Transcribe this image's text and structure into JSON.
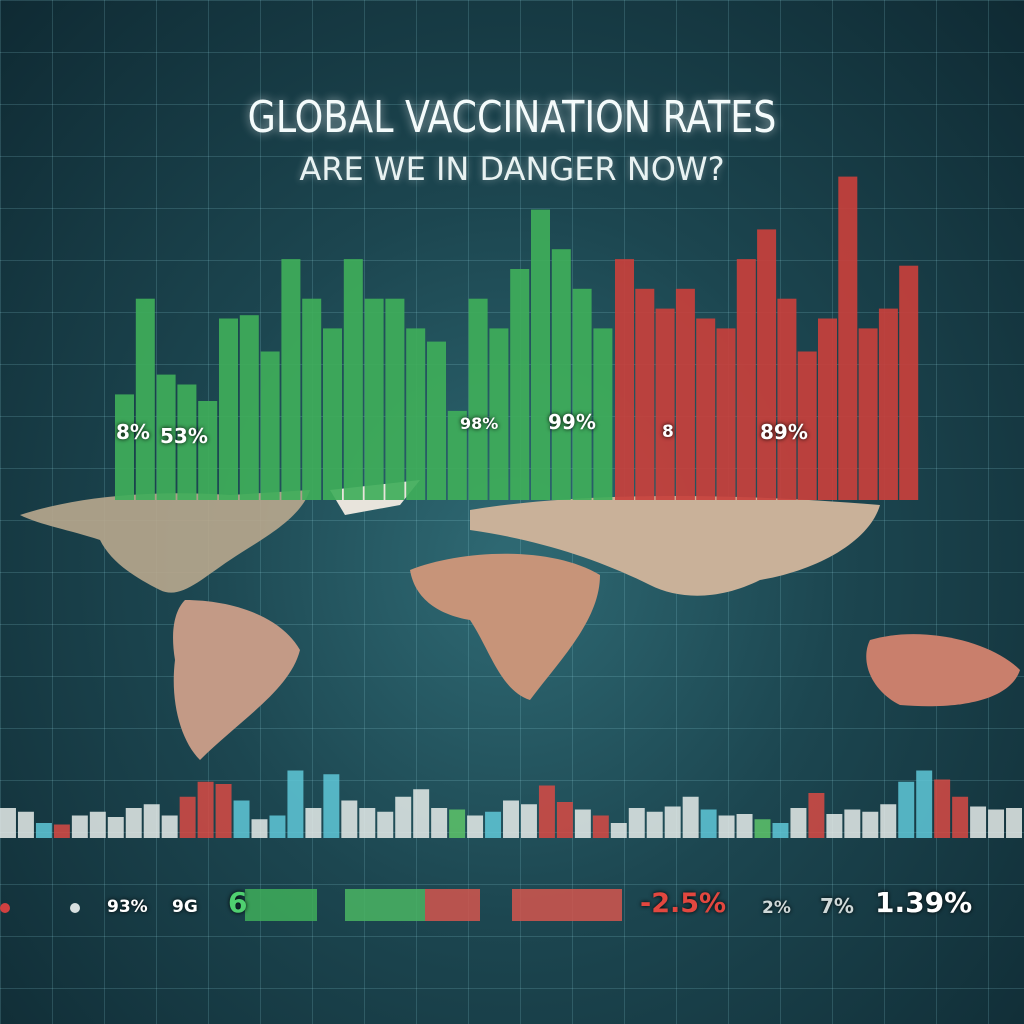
{
  "header": {
    "title": "GLOBAL VACCINATION RATES",
    "subtitle": "ARE WE IN DANGER NOW?"
  },
  "colors": {
    "green": "#3fae5a",
    "red": "#c8403c",
    "cyan": "#5fc8d8",
    "white": "#e6ecea",
    "background": "#1c4650"
  },
  "main_bars": {
    "green": [
      32,
      61,
      38,
      35,
      30,
      55,
      56,
      45,
      73,
      61,
      52,
      73,
      61,
      61,
      52,
      48,
      27,
      61,
      52,
      70,
      88,
      76,
      64,
      52
    ],
    "red": [
      73,
      64,
      58,
      64,
      55,
      52,
      73,
      82,
      61,
      45,
      55,
      98,
      52,
      58,
      71
    ]
  },
  "bar_labels": [
    "8%",
    "53%",
    "98%",
    "99%",
    "8",
    "89%"
  ],
  "bottom_bars": {
    "values": [
      40,
      35,
      20,
      18,
      30,
      35,
      28,
      40,
      45,
      30,
      55,
      75,
      72,
      50,
      25,
      30,
      90,
      40,
      85,
      50,
      40,
      35,
      55,
      65,
      40,
      38,
      30,
      35,
      50,
      45,
      70,
      48,
      38,
      30,
      20,
      40,
      35,
      42,
      55,
      38,
      30,
      32,
      25,
      20,
      40,
      60,
      32,
      38,
      35,
      45,
      75,
      90,
      78,
      55,
      42,
      38,
      40
    ],
    "colors": [
      "white",
      "white",
      "cyan",
      "red",
      "white",
      "white",
      "white",
      "white",
      "white",
      "white",
      "red",
      "red",
      "red",
      "cyan",
      "white",
      "cyan",
      "cyan",
      "white",
      "cyan",
      "white",
      "white",
      "white",
      "white",
      "white",
      "white",
      "green",
      "white",
      "cyan",
      "white",
      "white",
      "red",
      "red",
      "white",
      "red",
      "white",
      "white",
      "white",
      "white",
      "white",
      "cyan",
      "white",
      "white",
      "green",
      "cyan",
      "white",
      "red",
      "white",
      "white",
      "white",
      "white",
      "cyan",
      "cyan",
      "red",
      "red",
      "white",
      "white",
      "white"
    ]
  },
  "bottom_labels": [
    {
      "text": "93%",
      "color": "white"
    },
    {
      "text": "9G",
      "color": "white"
    },
    {
      "text": "6",
      "color": "green"
    },
    {
      "text": "-2.5%",
      "color": "red"
    },
    {
      "text": "2%",
      "color": "white"
    },
    {
      "text": "7%",
      "color": "white"
    },
    {
      "text": "1.39%",
      "color": "white"
    }
  ]
}
